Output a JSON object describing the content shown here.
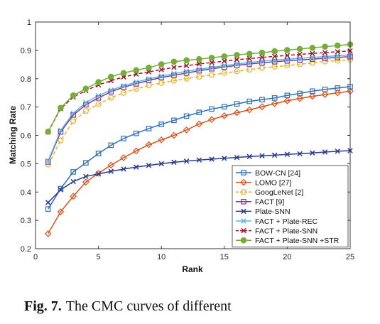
{
  "caption": {
    "label": "Fig. 7.",
    "text": "The CMC curves of different"
  },
  "chart_data": {
    "type": "line",
    "xlabel": "Rank",
    "ylabel": "Matching Rate",
    "xlim": [
      0,
      25
    ],
    "ylim": [
      0.2,
      1
    ],
    "xticks": [
      0,
      5,
      10,
      15,
      20,
      25
    ],
    "yticks": [
      0.2,
      0.3,
      0.4,
      0.5,
      0.6,
      0.7,
      0.8,
      0.9,
      1
    ],
    "ytick_labels": [
      "0.2",
      "0.3",
      "0.4",
      "0.5",
      "0.6",
      "0.7",
      "0.8",
      "0.9",
      "1"
    ],
    "grid": false,
    "legend_position": "lower-right",
    "x": [
      1,
      2,
      3,
      4,
      5,
      6,
      7,
      8,
      9,
      10,
      11,
      12,
      13,
      14,
      15,
      16,
      17,
      18,
      19,
      20,
      21,
      22,
      23,
      24,
      25
    ],
    "series": [
      {
        "name": "BOW-CN [24]",
        "color": "#2e6fb5",
        "marker": "square",
        "dash": "solid",
        "values": [
          0.34,
          0.412,
          0.471,
          0.503,
          0.536,
          0.565,
          0.589,
          0.607,
          0.624,
          0.639,
          0.653,
          0.668,
          0.681,
          0.693,
          0.701,
          0.711,
          0.72,
          0.726,
          0.732,
          0.741,
          0.748,
          0.756,
          0.762,
          0.767,
          0.772
        ]
      },
      {
        "name": "LOMO [27]",
        "color": "#d4521c",
        "marker": "diamond",
        "dash": "solid",
        "values": [
          0.253,
          0.33,
          0.385,
          0.435,
          0.466,
          0.495,
          0.521,
          0.545,
          0.567,
          0.584,
          0.6,
          0.619,
          0.64,
          0.656,
          0.669,
          0.68,
          0.69,
          0.701,
          0.712,
          0.722,
          0.73,
          0.738,
          0.744,
          0.75,
          0.756
        ]
      },
      {
        "name": "GoogLeNet [2]",
        "color": "#e7b22a",
        "marker": "circle",
        "dash": "dashed",
        "values": [
          0.497,
          0.582,
          0.65,
          0.686,
          0.71,
          0.733,
          0.75,
          0.764,
          0.776,
          0.785,
          0.793,
          0.8,
          0.807,
          0.813,
          0.82,
          0.826,
          0.832,
          0.838,
          0.842,
          0.846,
          0.851,
          0.856,
          0.861,
          0.864,
          0.867
        ]
      },
      {
        "name": "FACT [9]",
        "color": "#7a3a93",
        "marker": "square",
        "dash": "solid",
        "values": [
          0.506,
          0.612,
          0.672,
          0.708,
          0.732,
          0.754,
          0.77,
          0.782,
          0.794,
          0.804,
          0.812,
          0.82,
          0.828,
          0.835,
          0.841,
          0.847,
          0.852,
          0.856,
          0.86,
          0.863,
          0.866,
          0.869,
          0.872,
          0.875,
          0.878
        ]
      },
      {
        "name": "Plate-SNN",
        "color": "#2a3a8f",
        "marker": "x",
        "dash": "solid",
        "values": [
          0.363,
          0.408,
          0.437,
          0.455,
          0.464,
          0.473,
          0.481,
          0.488,
          0.494,
          0.5,
          0.505,
          0.509,
          0.513,
          0.516,
          0.519,
          0.522,
          0.525,
          0.528,
          0.53,
          0.533,
          0.535,
          0.538,
          0.541,
          0.544,
          0.546
        ]
      },
      {
        "name": "FACT + Plate-REC",
        "color": "#5fb7e0",
        "marker": "x",
        "dash": "solid",
        "values": [
          0.51,
          0.618,
          0.678,
          0.716,
          0.74,
          0.76,
          0.775,
          0.788,
          0.799,
          0.809,
          0.818,
          0.826,
          0.833,
          0.84,
          0.846,
          0.852,
          0.857,
          0.862,
          0.866,
          0.869,
          0.872,
          0.875,
          0.878,
          0.881,
          0.884
        ]
      },
      {
        "name": "FACT + Plate-SNN",
        "color": "#9e1a2c",
        "marker": "x",
        "dash": "dashed",
        "values": [
          0.612,
          0.694,
          0.735,
          0.758,
          0.778,
          0.793,
          0.806,
          0.816,
          0.824,
          0.832,
          0.84,
          0.846,
          0.852,
          0.857,
          0.862,
          0.867,
          0.871,
          0.875,
          0.879,
          0.882,
          0.886,
          0.889,
          0.892,
          0.895,
          0.898
        ]
      },
      {
        "name": "FACT + Plate-SNN +STR",
        "color": "#74ad3a",
        "marker": "circle-filled",
        "dash": "solid",
        "values": [
          0.613,
          0.697,
          0.741,
          0.765,
          0.788,
          0.807,
          0.82,
          0.83,
          0.839,
          0.851,
          0.86,
          0.865,
          0.869,
          0.874,
          0.879,
          0.884,
          0.888,
          0.892,
          0.897,
          0.901,
          0.905,
          0.909,
          0.913,
          0.917,
          0.921
        ]
      }
    ]
  }
}
